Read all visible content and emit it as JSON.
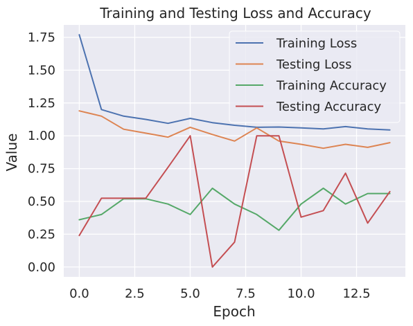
{
  "chart_data": {
    "type": "line",
    "title": "Training and Testing Loss and Accuracy",
    "xlabel": "Epoch",
    "ylabel": "Value",
    "x": [
      0,
      1,
      2,
      3,
      4,
      5,
      6,
      7,
      8,
      9,
      10,
      11,
      12,
      13,
      14
    ],
    "xlim": [
      -0.7,
      14.7
    ],
    "ylim": [
      -0.075,
      1.845
    ],
    "xticks": [
      "0.0",
      "2.5",
      "5.0",
      "7.5",
      "10.0",
      "12.5"
    ],
    "yticks": [
      "0.00",
      "0.25",
      "0.50",
      "0.75",
      "1.00",
      "1.25",
      "1.50",
      "1.75"
    ],
    "grid": true,
    "background": "#eaeaf2",
    "legend_position": "top-right",
    "series": [
      {
        "name": "Training Loss",
        "color": "#4c72b0",
        "values": [
          1.77,
          1.2,
          1.15,
          1.125,
          1.095,
          1.133,
          1.1,
          1.08,
          1.065,
          1.067,
          1.06,
          1.053,
          1.07,
          1.053,
          1.045
        ]
      },
      {
        "name": "Testing Loss",
        "color": "#dd8452",
        "values": [
          1.19,
          1.15,
          1.05,
          1.02,
          0.99,
          1.065,
          1.01,
          0.96,
          1.06,
          0.96,
          0.935,
          0.905,
          0.935,
          0.912,
          0.948
        ]
      },
      {
        "name": "Training Accuracy",
        "color": "#55a868",
        "values": [
          0.36,
          0.4,
          0.52,
          0.52,
          0.48,
          0.4,
          0.6,
          0.48,
          0.4,
          0.28,
          0.48,
          0.6,
          0.48,
          0.56,
          0.56
        ]
      },
      {
        "name": "Testing Accuracy",
        "color": "#c44e52",
        "values": [
          0.24,
          0.524,
          0.524,
          0.524,
          0.76,
          1.0,
          0.0,
          0.19,
          1.0,
          1.0,
          0.38,
          0.43,
          0.715,
          0.335,
          0.575
        ]
      }
    ]
  }
}
